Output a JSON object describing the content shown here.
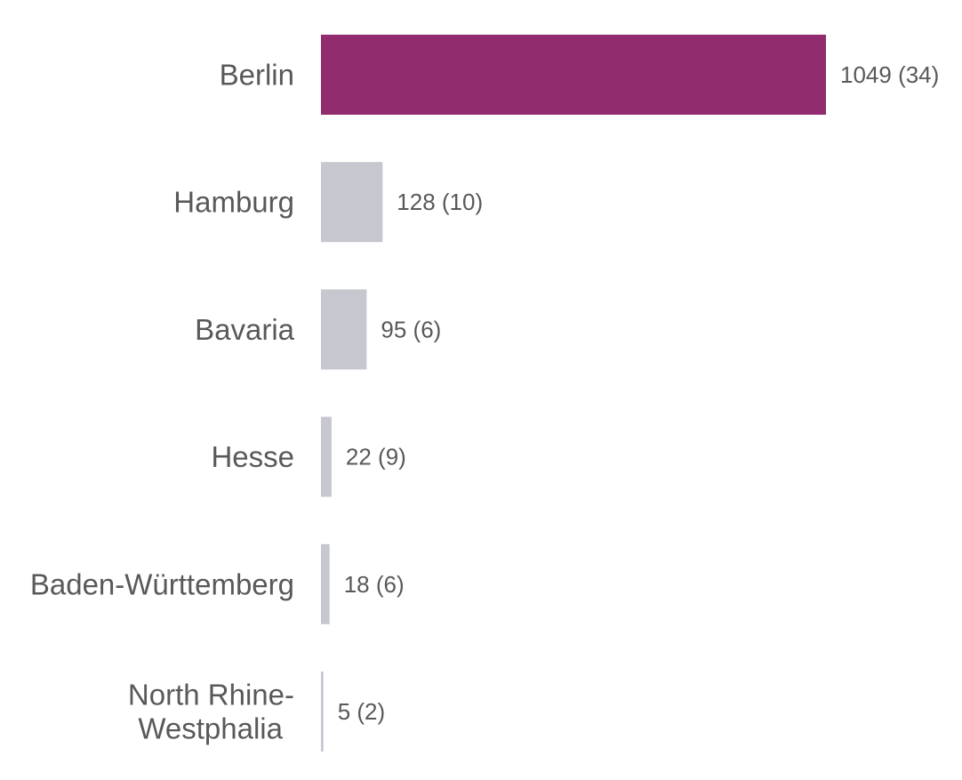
{
  "chart_data": {
    "type": "bar",
    "orientation": "horizontal",
    "categories": [
      [
        "Berlin"
      ],
      [
        "Hamburg"
      ],
      [
        "Bavaria"
      ],
      [
        "Hesse"
      ],
      [
        "Baden-Württemberg"
      ],
      [
        "North Rhine-",
        "Westphalia"
      ]
    ],
    "values": [
      1049,
      128,
      95,
      22,
      18,
      5
    ],
    "value_labels": [
      "1049 (34)",
      "128 (10)",
      "95 (6)",
      "22 (9)",
      "18 (6)",
      "5 (2)"
    ],
    "highlight_index": 0,
    "colors": {
      "highlight": "#912C6E",
      "default": "#C6C7CF",
      "text": "#595959"
    },
    "xlim": [
      0,
      1049
    ],
    "grid": false,
    "legend": "none",
    "title": "",
    "xlabel": "",
    "ylabel": ""
  }
}
